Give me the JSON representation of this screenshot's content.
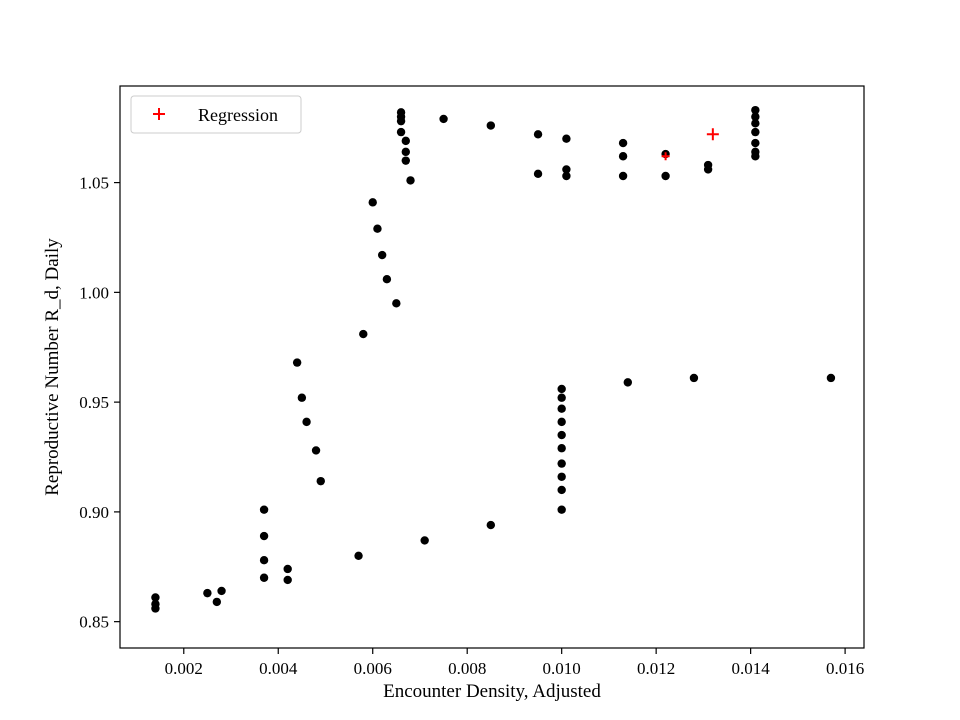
{
  "figure": {
    "background": "#ffffff",
    "point_color": "#000000",
    "regression_color": "#ff0000"
  },
  "chart_data": {
    "type": "scatter",
    "title": "",
    "xlabel": "Encounter Density, Adjusted",
    "ylabel": "Reproductive Number R_d, Daily",
    "xlim": [
      0.00065,
      0.0164
    ],
    "ylim": [
      0.838,
      1.094
    ],
    "grid": false,
    "x_ticks": [
      0.002,
      0.004,
      0.006,
      0.008,
      0.01,
      0.012,
      0.014,
      0.016
    ],
    "x_tick_labels": [
      "0.002",
      "0.004",
      "0.006",
      "0.008",
      "0.010",
      "0.012",
      "0.014",
      "0.016"
    ],
    "y_ticks": [
      0.85,
      0.9,
      0.95,
      1.0,
      1.05
    ],
    "y_tick_labels": [
      "0.85",
      "0.90",
      "0.95",
      "1.00",
      "1.05"
    ],
    "legend": {
      "position": "upper left",
      "entries": [
        "Regression"
      ],
      "marker": "plus",
      "marker_color": "#ff0000"
    },
    "series": [
      {
        "name": "observations",
        "marker": "circle",
        "color": "#000000",
        "points": [
          [
            0.0014,
            0.861
          ],
          [
            0.0014,
            0.858
          ],
          [
            0.0014,
            0.856
          ],
          [
            0.0025,
            0.863
          ],
          [
            0.0027,
            0.859
          ],
          [
            0.0028,
            0.864
          ],
          [
            0.0037,
            0.901
          ],
          [
            0.0037,
            0.889
          ],
          [
            0.0037,
            0.878
          ],
          [
            0.0037,
            0.87
          ],
          [
            0.0042,
            0.874
          ],
          [
            0.0042,
            0.869
          ],
          [
            0.0044,
            0.968
          ],
          [
            0.0045,
            0.952
          ],
          [
            0.0046,
            0.941
          ],
          [
            0.0048,
            0.928
          ],
          [
            0.0049,
            0.914
          ],
          [
            0.0057,
            0.88
          ],
          [
            0.0058,
            0.981
          ],
          [
            0.006,
            1.041
          ],
          [
            0.0061,
            1.029
          ],
          [
            0.0062,
            1.017
          ],
          [
            0.0063,
            1.006
          ],
          [
            0.0065,
            0.995
          ],
          [
            0.0066,
            1.082
          ],
          [
            0.0066,
            1.08
          ],
          [
            0.0066,
            1.078
          ],
          [
            0.0066,
            1.073
          ],
          [
            0.0067,
            1.069
          ],
          [
            0.0067,
            1.064
          ],
          [
            0.0067,
            1.06
          ],
          [
            0.0068,
            1.051
          ],
          [
            0.0071,
            0.887
          ],
          [
            0.0075,
            1.079
          ],
          [
            0.0085,
            1.076
          ],
          [
            0.0085,
            0.894
          ],
          [
            0.0095,
            1.072
          ],
          [
            0.0095,
            1.054
          ],
          [
            0.01,
            0.956
          ],
          [
            0.01,
            0.952
          ],
          [
            0.01,
            0.947
          ],
          [
            0.01,
            0.941
          ],
          [
            0.01,
            0.935
          ],
          [
            0.01,
            0.929
          ],
          [
            0.01,
            0.922
          ],
          [
            0.01,
            0.916
          ],
          [
            0.01,
            0.91
          ],
          [
            0.01,
            0.901
          ],
          [
            0.0101,
            1.07
          ],
          [
            0.0101,
            1.056
          ],
          [
            0.0101,
            1.053
          ],
          [
            0.0113,
            1.068
          ],
          [
            0.0113,
            1.062
          ],
          [
            0.0113,
            1.053
          ],
          [
            0.0114,
            0.959
          ],
          [
            0.0122,
            1.063
          ],
          [
            0.0122,
            1.053
          ],
          [
            0.0128,
            0.961
          ],
          [
            0.0131,
            1.058
          ],
          [
            0.0131,
            1.056
          ],
          [
            0.0141,
            1.083
          ],
          [
            0.0141,
            1.08
          ],
          [
            0.0141,
            1.077
          ],
          [
            0.0141,
            1.073
          ],
          [
            0.0141,
            1.068
          ],
          [
            0.0141,
            1.064
          ],
          [
            0.0141,
            1.062
          ],
          [
            0.0157,
            0.961
          ]
        ]
      },
      {
        "name": "Regression",
        "marker": "plus",
        "color": "#ff0000",
        "points": [
          [
            0.0132,
            1.072,
            6
          ],
          [
            0.0122,
            1.062,
            4
          ]
        ]
      }
    ]
  }
}
